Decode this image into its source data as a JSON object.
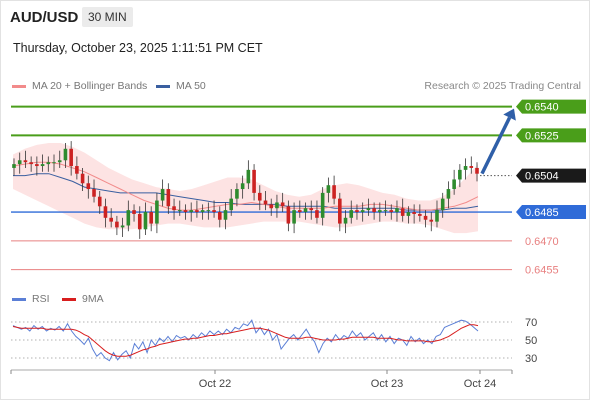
{
  "header": {
    "pair": "AUD/USD",
    "interval": "30 MIN",
    "timestamp": "Thursday, October 23, 2025 1:11:51 PM CET"
  },
  "legend": {
    "ma20_label": "MA 20 + Bollinger Bands",
    "ma50_label": "MA 50",
    "credit": "Research © 2025 Trading Central",
    "rsi_label": "RSI",
    "rsi_ma_label": "9MA"
  },
  "colors": {
    "ma20": "#f28b8b",
    "ma50": "#3a5fa0",
    "bollinger_fill": "#fde3e3",
    "bullish": "#2e8b2e",
    "bearish": "#cc2222",
    "resistance": "#4a9e1a",
    "pivot": "#2f6bd8",
    "support": "#e88080",
    "current": "#1a1a1a",
    "arrow": "#2f5fa8",
    "rsi": "#5b7fd6",
    "rsi_ma": "#d81e1e"
  },
  "chart_data": [
    {
      "type": "candlestick",
      "title": "AUD/USD",
      "ylim": [
        0.6448,
        0.6545
      ],
      "x_tick_labels": [
        "Oct 22",
        "Oct 23",
        "Oct 24"
      ],
      "levels": [
        {
          "value": 0.654,
          "label": "0.6540",
          "kind": "resistance",
          "style": "boxed"
        },
        {
          "value": 0.6525,
          "label": "0.6525",
          "kind": "resistance",
          "style": "boxed"
        },
        {
          "value": 0.6504,
          "label": "0.6504",
          "kind": "current",
          "style": "boxed"
        },
        {
          "value": 0.6485,
          "label": "0.6485",
          "kind": "pivot",
          "style": "boxed"
        },
        {
          "value": 0.647,
          "label": "0.6470",
          "kind": "support",
          "style": "text"
        },
        {
          "value": 0.6455,
          "label": "0.6455",
          "kind": "support",
          "style": "text"
        }
      ],
      "forecast_arrow": {
        "from": 0.6504,
        "to": 0.654,
        "direction": "up"
      },
      "price_path": [
        0.651,
        0.6512,
        0.6511,
        0.651,
        0.6509,
        0.651,
        0.6511,
        0.6511,
        0.6512,
        0.6518,
        0.6509,
        0.6505,
        0.65,
        0.6497,
        0.6493,
        0.6488,
        0.6482,
        0.648,
        0.6477,
        0.6478,
        0.6486,
        0.6484,
        0.6476,
        0.6485,
        0.6479,
        0.6491,
        0.6497,
        0.6488,
        0.6486,
        0.6486,
        0.6485,
        0.6486,
        0.6485,
        0.6486,
        0.6486,
        0.6485,
        0.6481,
        0.6486,
        0.6492,
        0.6497,
        0.65,
        0.6507,
        0.6495,
        0.6491,
        0.6489,
        0.6487,
        0.649,
        0.6488,
        0.6479,
        0.6486,
        0.6485,
        0.6487,
        0.6486,
        0.6482,
        0.6495,
        0.6499,
        0.6492,
        0.6479,
        0.6482,
        0.6486,
        0.6485,
        0.6486,
        0.6487,
        0.6485,
        0.6486,
        0.6486,
        0.6485,
        0.6487,
        0.6483,
        0.6485,
        0.6484,
        0.6483,
        0.6481,
        0.648,
        0.6486,
        0.6492,
        0.6497,
        0.6502,
        0.6507,
        0.6509,
        0.6508,
        0.6505
      ],
      "ma20": [
        0.6509,
        0.651,
        0.6511,
        0.6511,
        0.651,
        0.6508,
        0.6506,
        0.6503,
        0.65,
        0.6497,
        0.6494,
        0.6491,
        0.6489,
        0.6487,
        0.6486,
        0.6486,
        0.6487,
        0.6488,
        0.6489,
        0.6489,
        0.649,
        0.6489,
        0.6488,
        0.6487,
        0.6487,
        0.6487,
        0.6487,
        0.6488,
        0.6488,
        0.6488,
        0.6489,
        0.6489,
        0.6488,
        0.6487,
        0.6486,
        0.6486,
        0.6487,
        0.6488,
        0.649,
        0.6493
      ],
      "ma50": [
        0.6504,
        0.6504,
        0.6505,
        0.6505,
        0.6503,
        0.6501,
        0.6498,
        0.6497,
        0.6496,
        0.6495,
        0.6495,
        0.6495,
        0.6495,
        0.6494,
        0.6493,
        0.6492,
        0.6491,
        0.649,
        0.649,
        0.6489,
        0.6489,
        0.6489,
        0.6489,
        0.6488,
        0.6488,
        0.6488,
        0.6488,
        0.6487,
        0.6487,
        0.6487,
        0.6487,
        0.6487,
        0.6487,
        0.6486,
        0.6486,
        0.6486,
        0.6486,
        0.6487,
        0.6487,
        0.6488
      ],
      "bb_upper": [
        0.6515,
        0.6518,
        0.652,
        0.6521,
        0.6521,
        0.6519,
        0.6516,
        0.6512,
        0.6508,
        0.6505,
        0.6502,
        0.65,
        0.6498,
        0.6497,
        0.6496,
        0.6497,
        0.6499,
        0.6501,
        0.6503,
        0.6503,
        0.6502,
        0.6499,
        0.6496,
        0.6494,
        0.6493,
        0.6494,
        0.6497,
        0.6499,
        0.65,
        0.6499,
        0.6497,
        0.6495,
        0.6494,
        0.6492,
        0.6491,
        0.6491,
        0.6493,
        0.6497,
        0.6503,
        0.651
      ],
      "bb_lower": [
        0.6497,
        0.6494,
        0.6491,
        0.6488,
        0.6485,
        0.6482,
        0.6479,
        0.6477,
        0.6476,
        0.6476,
        0.6476,
        0.6477,
        0.6478,
        0.6479,
        0.6479,
        0.6478,
        0.6477,
        0.6477,
        0.6477,
        0.6478,
        0.6479,
        0.648,
        0.648,
        0.648,
        0.648,
        0.6479,
        0.6478,
        0.6477,
        0.6477,
        0.6478,
        0.6479,
        0.648,
        0.648,
        0.6479,
        0.6479,
        0.6478,
        0.6476,
        0.6474,
        0.6474,
        0.6475
      ]
    },
    {
      "type": "line",
      "title": "RSI",
      "ylim": [
        20,
        80
      ],
      "y_ticks": [
        30,
        50,
        70
      ],
      "series": [
        {
          "name": "RSI",
          "values": [
            66,
            64,
            62,
            64,
            60,
            66,
            62,
            65,
            60,
            63,
            61,
            65,
            60,
            68,
            60,
            54,
            50,
            45,
            52,
            40,
            32,
            36,
            30,
            27,
            36,
            28,
            34,
            38,
            30,
            46,
            40,
            48,
            36,
            50,
            44,
            52,
            48,
            54,
            48,
            55,
            52,
            54,
            50,
            56,
            52,
            58,
            54,
            60,
            56,
            60,
            56,
            62,
            58,
            64,
            62,
            68,
            66,
            72,
            58,
            64,
            56,
            62,
            50,
            56,
            40,
            46,
            52,
            56,
            50,
            56,
            62,
            54,
            48,
            36,
            46,
            52,
            48,
            56,
            50,
            55,
            52,
            60,
            54,
            58,
            50,
            54,
            58,
            50,
            56,
            48,
            54,
            46,
            52,
            50,
            44,
            54,
            48,
            52,
            46,
            50,
            46,
            54,
            56,
            64,
            66,
            68,
            70,
            72,
            71,
            68,
            64,
            60
          ]
        },
        {
          "name": "9MA",
          "values": [
            65,
            64,
            63,
            63,
            63,
            63,
            63,
            63,
            62,
            62,
            62,
            62,
            62,
            62,
            62,
            61,
            59,
            56,
            54,
            50,
            46,
            42,
            38,
            35,
            33,
            32,
            32,
            32,
            33,
            35,
            37,
            39,
            40,
            42,
            43,
            45,
            46,
            47,
            48,
            49,
            50,
            51,
            51,
            52,
            52,
            53,
            54,
            55,
            55,
            56,
            57,
            57,
            58,
            59,
            60,
            61,
            62,
            63,
            63,
            63,
            62,
            61,
            59,
            57,
            55,
            53,
            52,
            52,
            52,
            52,
            53,
            53,
            52,
            51,
            50,
            50,
            50,
            50,
            51,
            51,
            52,
            53,
            53,
            53,
            53,
            53,
            53,
            52,
            52,
            52,
            52,
            51,
            50,
            50,
            49,
            49,
            49,
            49,
            49,
            48,
            48,
            49,
            50,
            52,
            54,
            57,
            60,
            63,
            65,
            67,
            67,
            66
          ]
        }
      ]
    }
  ]
}
